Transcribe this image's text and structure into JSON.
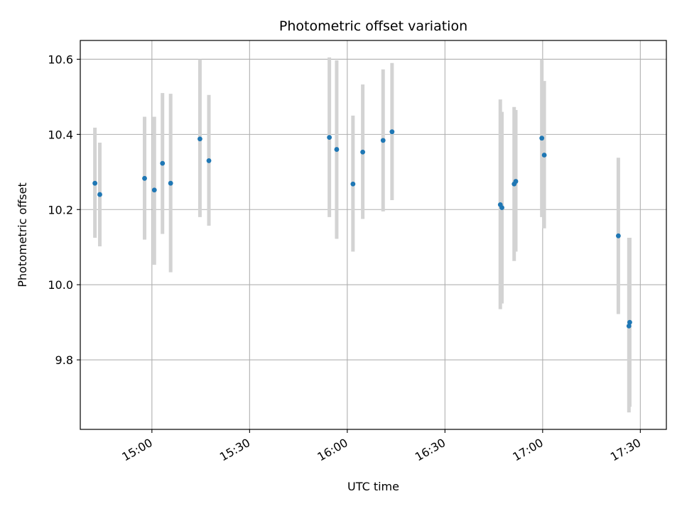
{
  "chart_data": {
    "type": "scatter",
    "title": "Photometric offset variation",
    "xlabel": "UTC time",
    "ylabel": "Photometric offset",
    "xlim": [
      "14:38",
      "17:38"
    ],
    "ylim": [
      9.615,
      10.65
    ],
    "x_ticks": [
      "15:00",
      "15:30",
      "16:00",
      "16:30",
      "17:00",
      "17:30"
    ],
    "y_ticks": [
      9.8,
      10.0,
      10.2,
      10.4,
      10.6
    ],
    "y_tick_labels": [
      "9.8",
      "10.0",
      "10.2",
      "10.4",
      "10.6"
    ],
    "grid": true,
    "colors": {
      "point": "#1f77b4",
      "errorbar": "#d3d3d3",
      "grid": "#b0b0b0"
    },
    "points": [
      {
        "x": "14:42:30",
        "y": 10.27,
        "lo": 10.125,
        "hi": 10.418
      },
      {
        "x": "14:44:00",
        "y": 10.24,
        "lo": 10.102,
        "hi": 10.378
      },
      {
        "x": "14:57:45",
        "y": 10.283,
        "lo": 10.12,
        "hi": 10.447
      },
      {
        "x": "15:00:45",
        "y": 10.252,
        "lo": 10.053,
        "hi": 10.447
      },
      {
        "x": "15:03:15",
        "y": 10.323,
        "lo": 10.135,
        "hi": 10.51
      },
      {
        "x": "15:05:45",
        "y": 10.27,
        "lo": 10.033,
        "hi": 10.508
      },
      {
        "x": "15:14:45",
        "y": 10.388,
        "lo": 10.18,
        "hi": 10.6
      },
      {
        "x": "15:17:30",
        "y": 10.33,
        "lo": 10.157,
        "hi": 10.505
      },
      {
        "x": "15:54:30",
        "y": 10.392,
        "lo": 10.18,
        "hi": 10.605
      },
      {
        "x": "15:56:45",
        "y": 10.36,
        "lo": 10.122,
        "hi": 10.597
      },
      {
        "x": "16:01:45",
        "y": 10.268,
        "lo": 10.088,
        "hi": 10.45
      },
      {
        "x": "16:04:45",
        "y": 10.353,
        "lo": 10.175,
        "hi": 10.533
      },
      {
        "x": "16:11:00",
        "y": 10.384,
        "lo": 10.195,
        "hi": 10.573
      },
      {
        "x": "16:13:45",
        "y": 10.407,
        "lo": 10.225,
        "hi": 10.59
      },
      {
        "x": "16:47:00",
        "y": 10.213,
        "lo": 9.935,
        "hi": 10.493
      },
      {
        "x": "16:47:30",
        "y": 10.205,
        "lo": 9.95,
        "hi": 10.46
      },
      {
        "x": "16:51:15",
        "y": 10.268,
        "lo": 10.063,
        "hi": 10.473
      },
      {
        "x": "16:51:45",
        "y": 10.275,
        "lo": 10.088,
        "hi": 10.465
      },
      {
        "x": "16:59:45",
        "y": 10.39,
        "lo": 10.18,
        "hi": 10.6
      },
      {
        "x": "17:00:30",
        "y": 10.345,
        "lo": 10.15,
        "hi": 10.542
      },
      {
        "x": "17:23:15",
        "y": 10.13,
        "lo": 9.922,
        "hi": 10.338
      },
      {
        "x": "17:26:30",
        "y": 9.89,
        "lo": 9.66,
        "hi": 10.125
      },
      {
        "x": "17:26:45",
        "y": 9.9,
        "lo": 9.675,
        "hi": 10.125
      }
    ]
  }
}
